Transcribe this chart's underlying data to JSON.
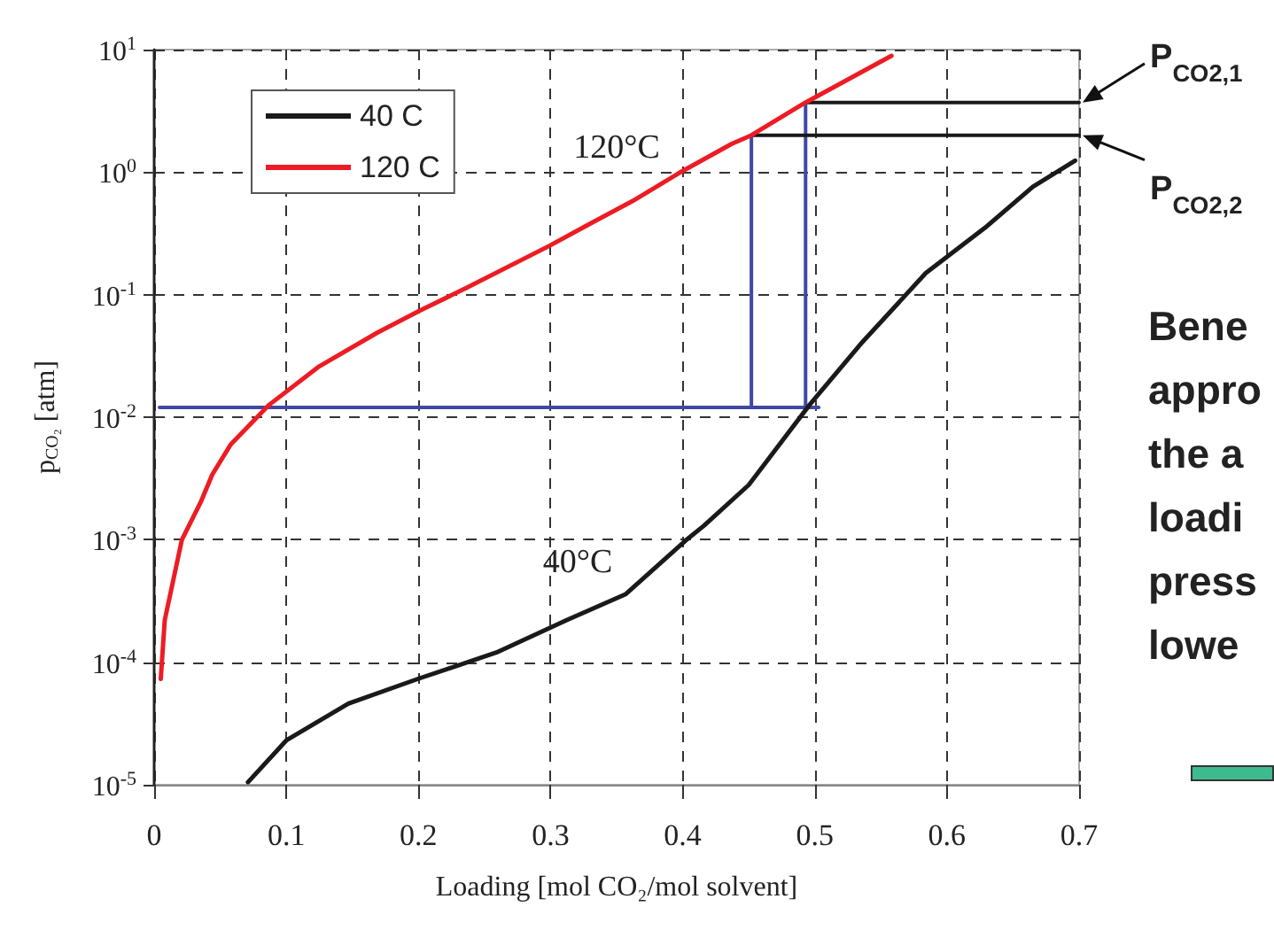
{
  "chart_data": {
    "type": "line",
    "xlabel": "Loading [mol CO₂/mol solvent]",
    "ylabel": "p$_{CO₂}$ [atm]",
    "xlim": [
      0,
      0.7
    ],
    "xticks": [
      {
        "value": 0,
        "label": "0"
      },
      0.1,
      0.2,
      0.3,
      0.4,
      0.5,
      0.6,
      0.7
    ],
    "ylim": [
      1e-05,
      10
    ],
    "yticks": [
      {
        "value": 1e-05,
        "label": "10$^{-5}$"
      },
      {
        "value": 0.0001,
        "label": "10$^{-4}$"
      },
      {
        "value": 0.001,
        "label": "10$^{-3}$"
      },
      {
        "value": 0.01,
        "label": "10$^{-2}$"
      },
      {
        "value": 0.1,
        "label": "10$^{-1}$"
      },
      {
        "value": 1,
        "label": "10$^{0}$"
      },
      {
        "value": 10,
        "label": "10$^{1}$"
      }
    ],
    "log": "y",
    "grid": true,
    "legend": "top left",
    "marker": "none",
    "line_style": "solid",
    "series": [
      {
        "name": "40 C",
        "color": "#1a1a1a",
        "x": [
          0.071,
          0.1,
          0.147,
          0.201,
          0.259,
          0.312,
          0.357,
          0.402,
          0.416,
          0.45,
          0.496,
          0.536,
          0.584,
          0.63,
          0.665,
          0.697
        ],
        "values": [
          1.05e-05,
          2.3e-05,
          4.6e-05,
          7.4e-05,
          0.00012,
          0.00022,
          0.00036,
          0.00098,
          0.0013,
          0.0028,
          0.0126,
          0.041,
          0.15,
          0.36,
          0.76,
          1.24
        ]
      },
      {
        "name": "120 C",
        "color": "#ed1c24",
        "x": [
          0.005,
          0.008,
          0.021,
          0.035,
          0.044,
          0.058,
          0.087,
          0.125,
          0.169,
          0.201,
          0.236,
          0.299,
          0.326,
          0.362,
          0.397,
          0.437,
          0.452,
          0.493,
          0.558
        ],
        "values": [
          7.3e-05,
          0.00022,
          0.001,
          0.002,
          0.0034,
          0.006,
          0.0126,
          0.026,
          0.049,
          0.074,
          0.113,
          0.25,
          0.36,
          0.58,
          0.98,
          1.7,
          2.0,
          3.7,
          8.9
        ]
      },
      {
        "color": "#3f48a5",
        "x": [
          0.004,
          0.503
        ],
        "values": [
          0.012,
          0.012
        ]
      },
      {
        "color": "#3f48a5",
        "x": [
          0.452,
          0.452
        ],
        "values": [
          0.012,
          2.0
        ]
      },
      {
        "color": "#3f48a5",
        "x": [
          0.493,
          0.493
        ],
        "values": [
          0.012,
          3.7
        ]
      },
      {
        "color": "#1a1a1a",
        "x": [
          0.452,
          0.7
        ],
        "values": [
          2.0,
          2.0
        ]
      },
      {
        "color": "#1a1a1a",
        "x": [
          0.493,
          0.7
        ],
        "values": [
          3.7,
          3.7
        ]
      }
    ],
    "annotations": [
      "120°C",
      "40°C",
      {
        "text": "P$_{CO2,1}$",
        "x": 0.7,
        "y": 3.7
      },
      {
        "text": "P$_{CO2,2}$",
        "x": 0.7,
        "y": 2.0
      },
      "Bene",
      "appro",
      "the a",
      "loadi",
      "press",
      "lowe"
    ]
  }
}
